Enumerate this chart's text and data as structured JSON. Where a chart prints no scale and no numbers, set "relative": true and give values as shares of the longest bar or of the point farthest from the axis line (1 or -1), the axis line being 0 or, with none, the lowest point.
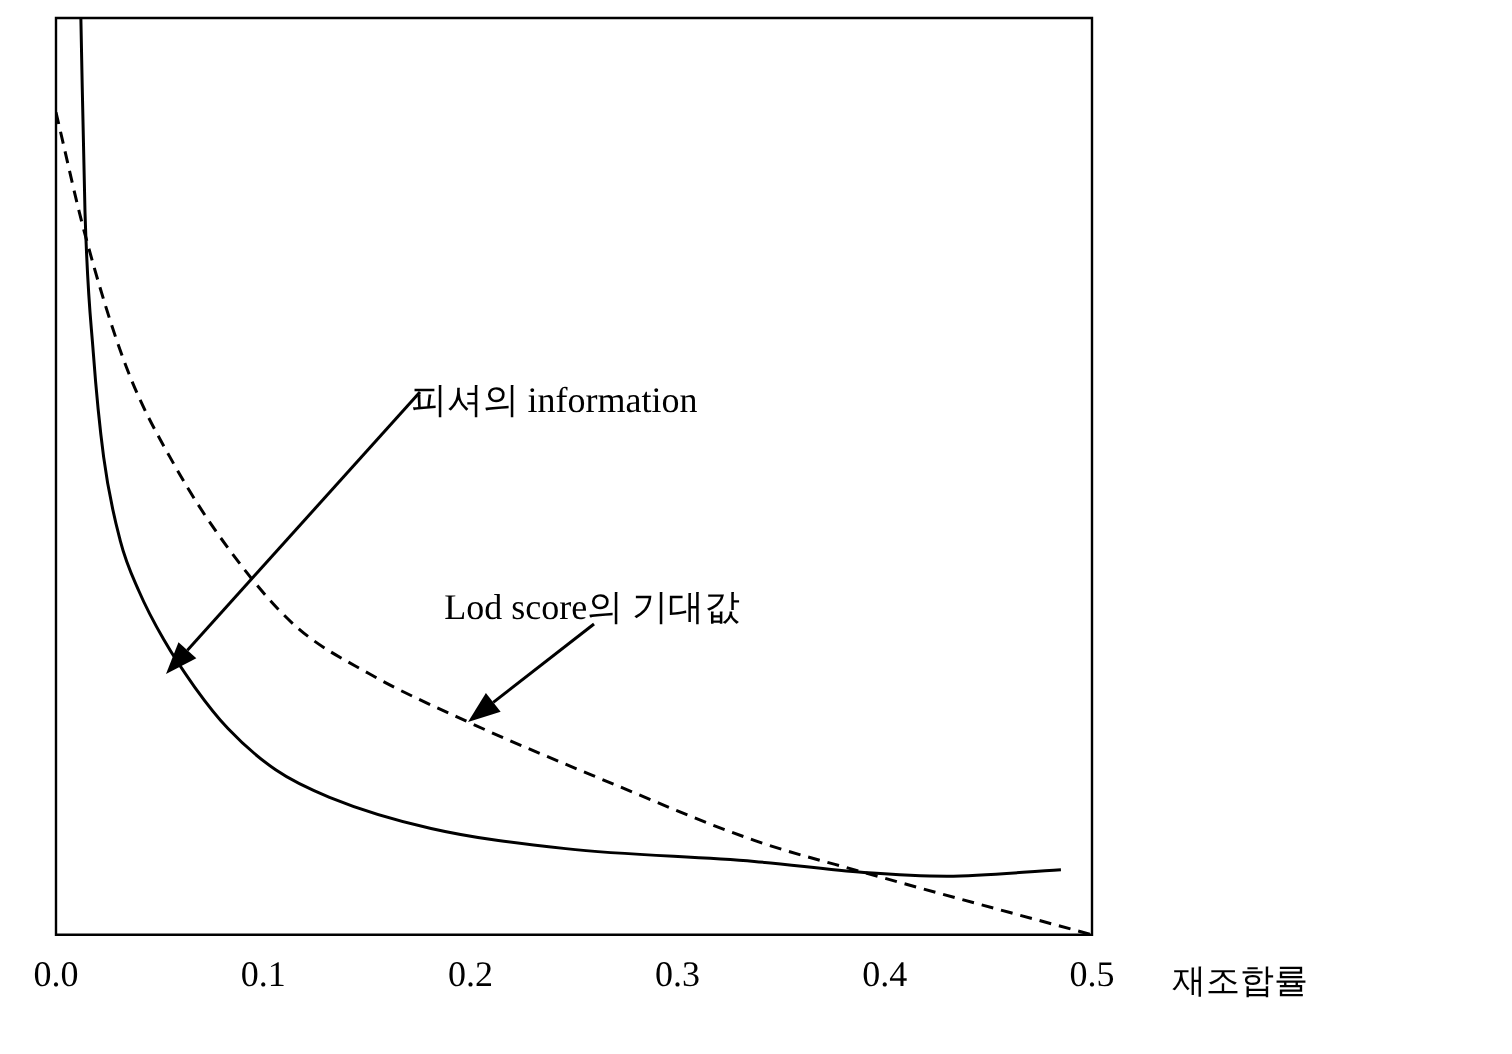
{
  "chart_data": {
    "type": "line",
    "relative": true,
    "xlabel": "재조합률",
    "xlim": [
      0,
      0.5
    ],
    "xticks": [
      {
        "value": 0,
        "label": "0.0"
      },
      0.1,
      0.2,
      0.3,
      0.4,
      0.5
    ],
    "marker": "none",
    "series": [
      {
        "color": "#000000",
        "line_style": "solid",
        "x": [
          0.012,
          0.014,
          0.018,
          0.023,
          0.031,
          0.04,
          0.052,
          0.067,
          0.083,
          0.106,
          0.132,
          0.181,
          0.246,
          0.337,
          0.39,
          0.43,
          0.485
        ],
        "values": [
          1.0,
          0.788,
          0.635,
          0.521,
          0.43,
          0.375,
          0.322,
          0.27,
          0.225,
          0.18,
          0.15,
          0.116,
          0.094,
          0.08,
          0.068,
          0.064,
          0.071
        ]
      },
      {
        "color": "#000000",
        "line_style": "dashed",
        "x": [
          0,
          0.014,
          0.034,
          0.057,
          0.083,
          0.115,
          0.151,
          0.2,
          0.262,
          0.337,
          0.39,
          0.5
        ],
        "values": [
          0.897,
          0.764,
          0.619,
          0.513,
          0.422,
          0.338,
          0.285,
          0.231,
          0.171,
          0.103,
          0.068,
          0
        ]
      }
    ],
    "annotations": [
      "피셔의 information",
      {
        "text": "Lod score의 기대값",
        "x": 0.199,
        "y": 0.233
      }
    ]
  }
}
